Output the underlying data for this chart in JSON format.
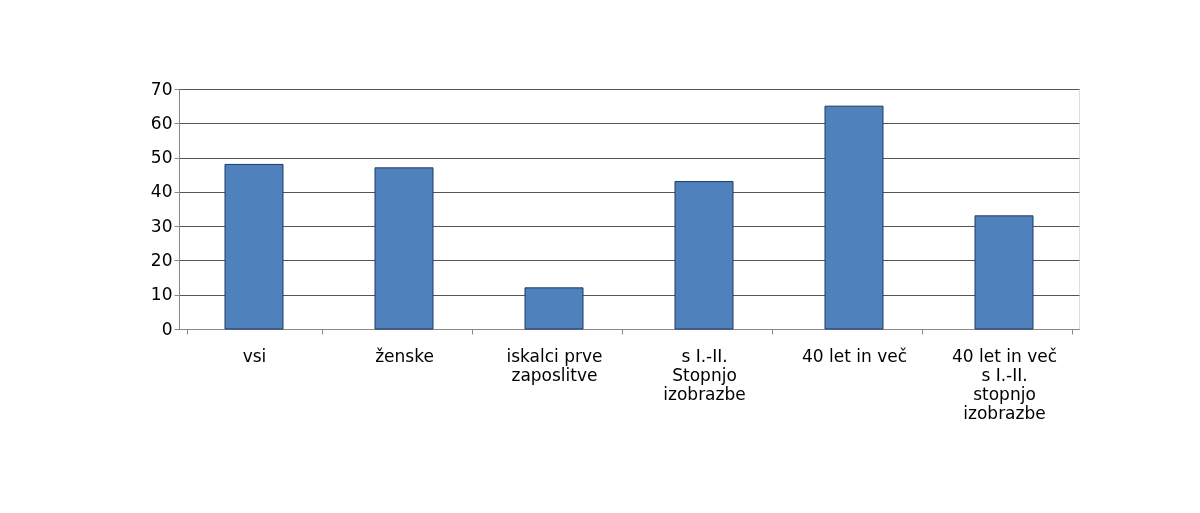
{
  "chart_data": {
    "type": "bar",
    "categories": [
      "vsi",
      "ženske",
      "iskalci prve zaposlitve",
      "s I.-II. Stopnjo izobrazbe",
      "40 let in več",
      "40 let in več s I.-II. stopnjo izobrazbe"
    ],
    "values": [
      48,
      47,
      12,
      43,
      65,
      33
    ],
    "color": "#4f81bd",
    "ylim": [
      0,
      70
    ],
    "yticks": [
      0,
      10,
      20,
      30,
      40,
      50,
      60,
      70
    ],
    "grid": "y"
  }
}
